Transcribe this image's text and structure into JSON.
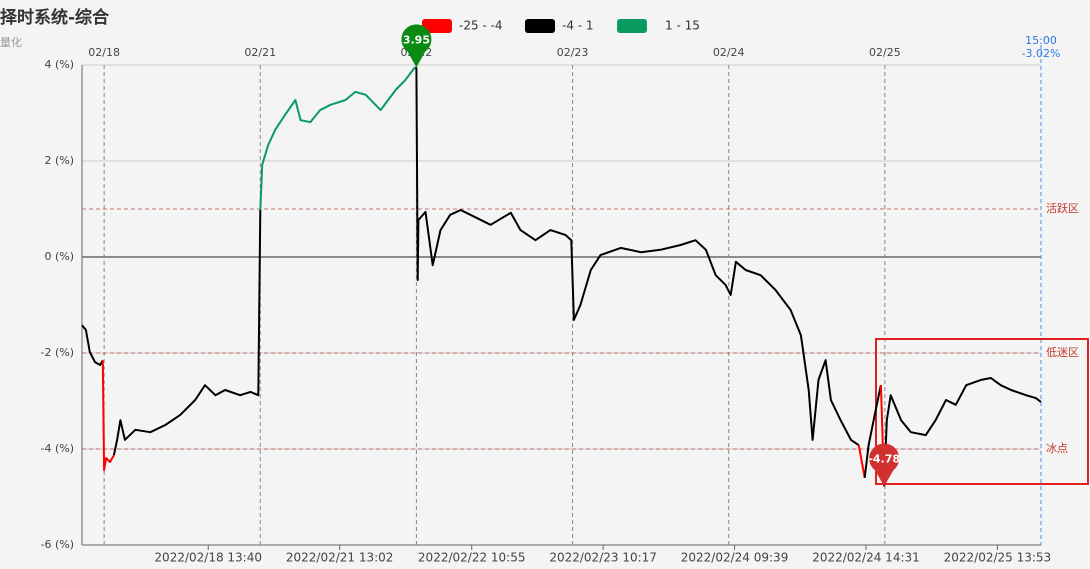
{
  "chart_data": {
    "type": "line",
    "title": "择时系统-综合",
    "subtitle": "量化",
    "visual_map": [
      {
        "min": -25,
        "max": -4,
        "color": "#ff0000",
        "label": "-25 - -4"
      },
      {
        "min": -4,
        "max": 1,
        "color": "#000000",
        "label": "-4 - 1"
      },
      {
        "min": 1,
        "max": 15,
        "color": "#0a9a62",
        "label": "1 - 15"
      }
    ],
    "xlim": [
      -34,
      1440
    ],
    "ylim": [
      -6,
      4
    ],
    "yticks": [
      {
        "value": -6,
        "label": "-6 (%)"
      },
      {
        "value": -4,
        "label": "-4 (%)"
      },
      {
        "value": -2,
        "label": "-2 (%)"
      },
      {
        "value": 0,
        "label": "0 (%)"
      },
      {
        "value": 2,
        "label": "2 (%)"
      },
      {
        "value": 4,
        "label": "4 (%)"
      }
    ],
    "xticks": [
      {
        "value": 0,
        "label": "02/18"
      },
      {
        "value": 240,
        "label": "02/21"
      },
      {
        "value": 480,
        "label": "02/22"
      },
      {
        "value": 720,
        "label": "02/23"
      },
      {
        "value": 960,
        "label": "02/24"
      },
      {
        "value": 1200,
        "label": "02/25"
      }
    ],
    "xticks_bottom": [
      {
        "value": 160,
        "label": "2022/02/18 13:40"
      },
      {
        "value": 362,
        "label": "2022/02/21 13:02"
      },
      {
        "value": 565,
        "label": "2022/02/22 10:55"
      },
      {
        "value": 767,
        "label": "2022/02/23 10:17"
      },
      {
        "value": 969,
        "label": "2022/02/24 09:39"
      },
      {
        "value": 1171,
        "label": "2022/02/24 14:31"
      },
      {
        "value": 1373,
        "label": "2022/02/25 13:53"
      }
    ],
    "last_point": {
      "x": 1440,
      "label": "15:00",
      "value": -3.02,
      "value_label": "-3.02%"
    },
    "reference_lines": [
      {
        "value": 1,
        "label": "活跃区"
      },
      {
        "value": -2,
        "label": "低迷区"
      },
      {
        "value": -4,
        "label": "冰点"
      }
    ],
    "markers": [
      {
        "x": 480,
        "value": 3.95,
        "color": "#0a8a10"
      },
      {
        "x": 1199,
        "value": -4.78,
        "color": "#d03030"
      }
    ],
    "x": [
      -34,
      -28,
      -22,
      -14,
      -6,
      -2,
      0,
      3,
      9,
      15,
      20,
      25,
      32,
      48,
      71,
      94,
      117,
      140,
      155,
      171,
      186,
      209,
      225,
      237,
      240,
      243,
      252,
      263,
      278,
      294,
      302,
      317,
      332,
      348,
      371,
      386,
      402,
      425,
      448,
      463,
      477,
      480,
      482,
      483,
      494,
      505,
      517,
      532,
      548,
      563,
      594,
      625,
      640,
      663,
      686,
      709,
      718,
      722,
      732,
      748,
      763,
      794,
      825,
      855,
      886,
      909,
      925,
      940,
      955,
      963,
      971,
      986,
      1009,
      1032,
      1055,
      1071,
      1083,
      1089,
      1098,
      1109,
      1117,
      1132,
      1148,
      1160,
      1169,
      1175,
      1186,
      1194,
      1199,
      1203,
      1209,
      1225,
      1240,
      1263,
      1278,
      1294,
      1309,
      1325,
      1348,
      1363,
      1378,
      1394,
      1417,
      1432,
      1440
    ],
    "values": [
      -1.42,
      -1.52,
      -1.98,
      -2.19,
      -2.25,
      -2.15,
      -4.44,
      -4.19,
      -4.27,
      -4.13,
      -3.81,
      -3.4,
      -3.81,
      -3.6,
      -3.65,
      -3.5,
      -3.29,
      -2.98,
      -2.67,
      -2.88,
      -2.77,
      -2.88,
      -2.81,
      -2.88,
      0.98,
      1.92,
      2.33,
      2.65,
      2.96,
      3.27,
      2.85,
      2.81,
      3.06,
      3.17,
      3.27,
      3.44,
      3.38,
      3.06,
      3.48,
      3.69,
      3.94,
      3.95,
      -0.48,
      0.77,
      0.94,
      -0.17,
      0.56,
      0.88,
      0.98,
      0.88,
      0.67,
      0.92,
      0.56,
      0.35,
      0.56,
      0.46,
      0.35,
      -1.31,
      -1.0,
      -0.27,
      0.04,
      0.19,
      0.1,
      0.15,
      0.25,
      0.35,
      0.15,
      -0.38,
      -0.58,
      -0.79,
      -0.1,
      -0.27,
      -0.38,
      -0.69,
      -1.1,
      -1.63,
      -2.77,
      -3.81,
      -2.56,
      -2.15,
      -2.98,
      -3.4,
      -3.81,
      -3.92,
      -4.6,
      -3.92,
      -3.19,
      -2.67,
      -4.78,
      -3.4,
      -2.88,
      -3.4,
      -3.65,
      -3.71,
      -3.4,
      -2.98,
      -3.08,
      -2.67,
      -2.56,
      -2.52,
      -2.67,
      -2.77,
      -2.88,
      -2.94,
      -3.02
    ]
  }
}
